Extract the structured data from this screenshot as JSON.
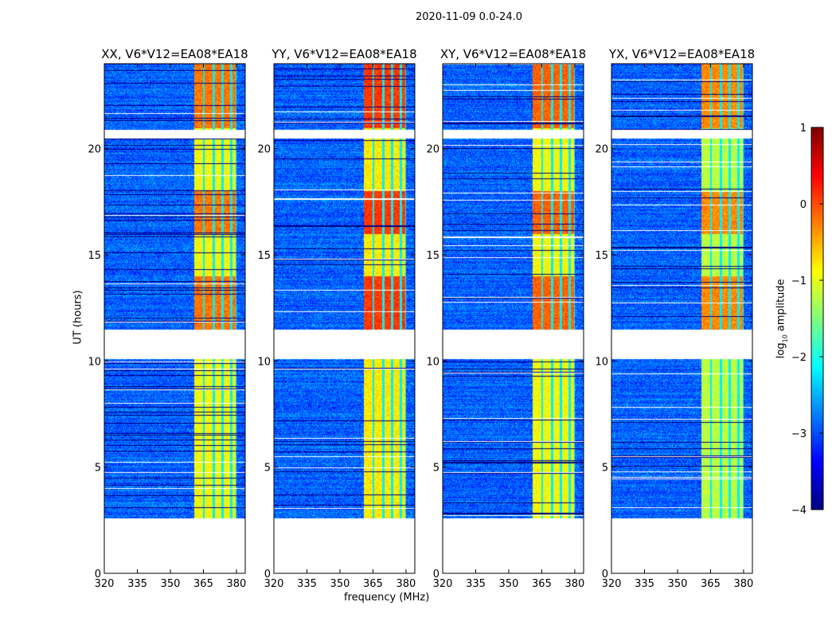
{
  "chart_data": {
    "type": "heatmap",
    "title": "2020-11-09 0.0-24.0",
    "xlabel": "frequency (MHz)",
    "ylabel": "UT (hours)",
    "xlim": [
      320,
      384
    ],
    "ylim": [
      0,
      24
    ],
    "xticks": [
      "320",
      "335",
      "350",
      "365",
      "380"
    ],
    "yticks": [
      "0",
      "5",
      "10",
      "15",
      "20"
    ],
    "panels": [
      {
        "title": "XX, V6*V12=EA08*EA18",
        "band_level": -0.9,
        "flare_level": -0.2
      },
      {
        "title": "YY, V6*V12=EA08*EA18",
        "band_level": -0.8,
        "flare_level": 0.1
      },
      {
        "title": "XY, V6*V12=EA08*EA18",
        "band_level": -0.9,
        "flare_level": -0.1
      },
      {
        "title": "YX, V6*V12=EA08*EA18",
        "band_level": -1.2,
        "flare_level": -0.3
      }
    ],
    "data_segments_hours": [
      [
        2.6,
        10.1
      ],
      [
        11.5,
        20.5
      ],
      [
        20.9,
        24.0
      ]
    ],
    "background_level": -2.9,
    "bright_band_mhz": [
      360.5,
      380.0
    ],
    "band_notch_mhz": [
      365,
      369.5,
      373.5,
      377.5,
      380
    ],
    "high_amplitude_hours": [
      [
        11.5,
        14.0
      ],
      [
        16.0,
        18.0
      ],
      [
        21.0,
        24.0
      ]
    ],
    "colorbar": {
      "label": "log10 amplitude",
      "label_main": "log",
      "label_sub": "10",
      "label_rest": " amplitude",
      "range": [
        -4,
        1
      ],
      "ticks": [
        "1",
        "0",
        "−1",
        "−2",
        "−3",
        "−4"
      ],
      "colormap": "jet"
    }
  }
}
